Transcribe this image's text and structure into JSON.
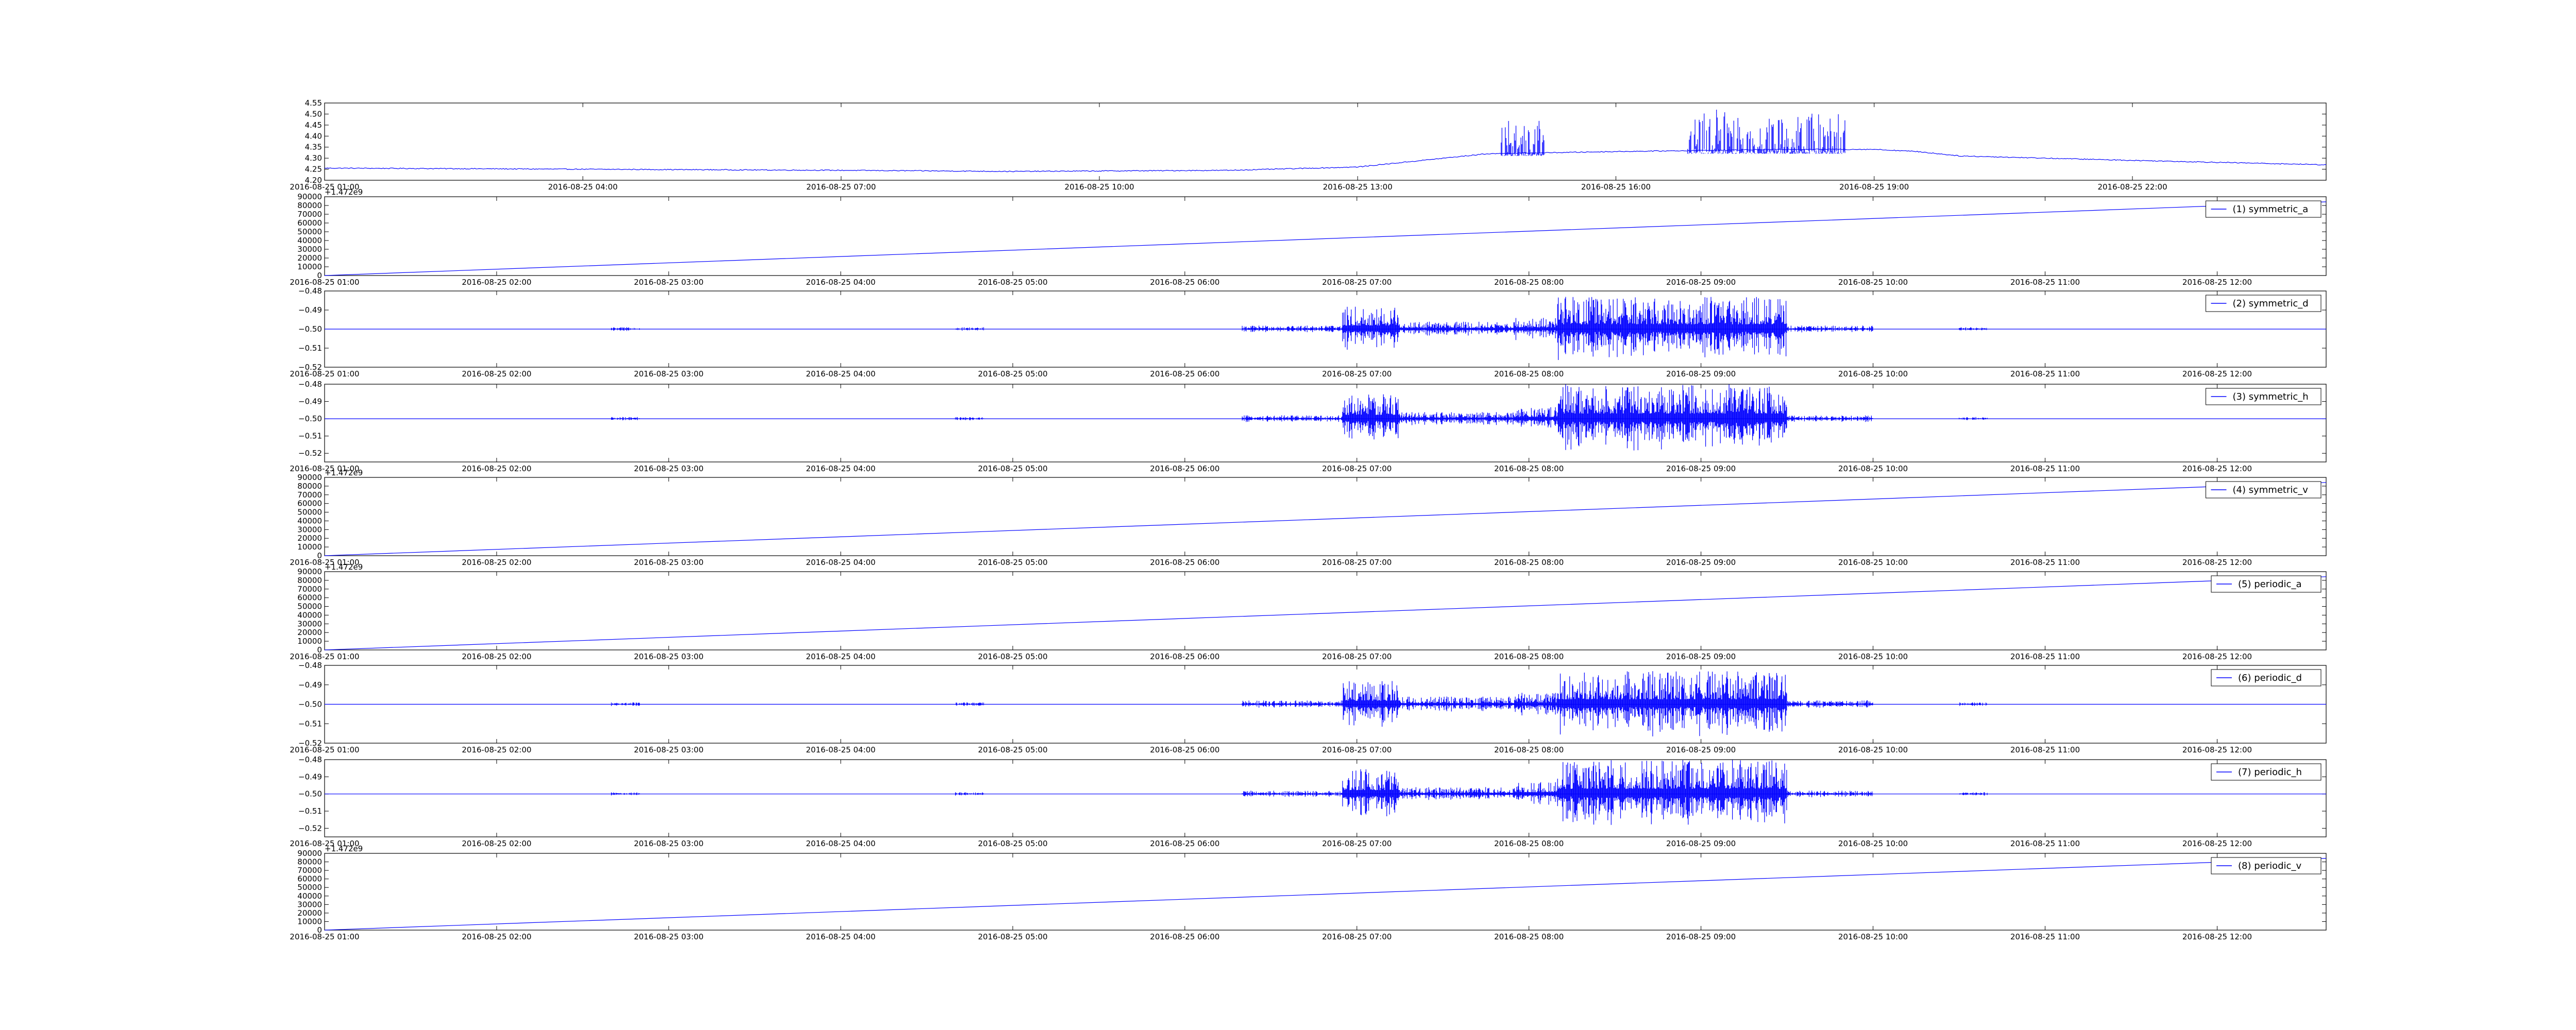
{
  "chart_data": [
    {
      "type": "line",
      "ylim": [
        4.2,
        4.55
      ],
      "y_ticks": [
        "4.20",
        "4.25",
        "4.30",
        "4.35",
        "4.40",
        "4.45",
        "4.50",
        "4.55"
      ],
      "x_ticks": [
        "2016-08-25 01:00",
        "2016-08-25 04:00",
        "2016-08-25 07:00",
        "2016-08-25 10:00",
        "2016-08-25 13:00",
        "2016-08-25 16:00",
        "2016-08-25 19:00",
        "2016-08-25 22:00"
      ],
      "x_range": [
        "2016-08-25 01:00",
        "2016-08-25 24:15"
      ],
      "color": "#0000ff",
      "series": [
        {
          "x": [
            "2016-08-25 01:00",
            "2016-08-25 04:00",
            "2016-08-25 07:00",
            "2016-08-25 09:00",
            "2016-08-25 11:30",
            "2016-08-25 13:00",
            "2016-08-25 14:30",
            "2016-08-25 16:00",
            "2016-08-25 18:00",
            "2016-08-25 19:00",
            "2016-08-25 19:30",
            "2016-08-25 20:00",
            "2016-08-25 22:00",
            "2016-08-25 24:15"
          ],
          "values": [
            4.255,
            4.25,
            4.245,
            4.24,
            4.245,
            4.26,
            4.32,
            4.33,
            4.34,
            4.34,
            4.33,
            4.31,
            4.29,
            4.27
          ],
          "bursts": [
            {
              "from": "2016-08-25 14:40",
              "to": "2016-08-25 15:10",
              "max": 4.47,
              "min": 4.31
            },
            {
              "from": "2016-08-25 16:50",
              "to": "2016-08-25 18:00",
              "max": 4.52,
              "min": 4.32
            },
            {
              "from": "2016-08-25 18:00",
              "to": "2016-08-25 18:40",
              "max": 4.51,
              "min": 4.32
            }
          ]
        }
      ]
    },
    {
      "type": "line",
      "legend": "(1) symmetric_a",
      "legend_loc": "upper right",
      "offset_text": "+1.472e9",
      "ylim": [
        0,
        90000
      ],
      "y_ticks": [
        "0",
        "10000",
        "20000",
        "30000",
        "40000",
        "50000",
        "60000",
        "70000",
        "80000",
        "90000"
      ],
      "x_ticks": [
        "2016-08-25 01:00",
        "2016-08-25 02:00",
        "2016-08-25 03:00",
        "2016-08-25 04:00",
        "2016-08-25 05:00",
        "2016-08-25 06:00",
        "2016-08-25 07:00",
        "2016-08-25 08:00",
        "2016-08-25 09:00",
        "2016-08-25 10:00",
        "2016-08-25 11:00",
        "2016-08-25 12:00"
      ],
      "x_range": [
        "2016-08-25 01:00",
        "2016-08-25 12:38"
      ],
      "color": "#0000ff",
      "series": [
        {
          "x": [
            "2016-08-25 01:00",
            "2016-08-25 12:38"
          ],
          "values": [
            0,
            84200
          ]
        }
      ]
    },
    {
      "type": "line",
      "legend": "(2) symmetric_d",
      "legend_loc": "upper right",
      "ylim": [
        -0.52,
        -0.48
      ],
      "y_ticks": [
        "−0.52",
        "−0.51",
        "−0.50",
        "−0.49",
        "−0.48"
      ],
      "x_ticks": [
        "2016-08-25 01:00",
        "2016-08-25 02:00",
        "2016-08-25 03:00",
        "2016-08-25 04:00",
        "2016-08-25 05:00",
        "2016-08-25 06:00",
        "2016-08-25 07:00",
        "2016-08-25 08:00",
        "2016-08-25 09:00",
        "2016-08-25 10:00",
        "2016-08-25 11:00",
        "2016-08-25 12:00"
      ],
      "x_range": [
        "2016-08-25 01:00",
        "2016-08-25 12:38"
      ],
      "color": "#0000ff",
      "series": [
        {
          "baseline": -0.5,
          "bursts": [
            {
              "from": "2016-08-25 02:40",
              "to": "2016-08-25 02:50",
              "amp": 0.001
            },
            {
              "from": "2016-08-25 04:40",
              "to": "2016-08-25 04:50",
              "amp": 0.001
            },
            {
              "from": "2016-08-25 06:20",
              "to": "2016-08-25 06:55",
              "amp": 0.002
            },
            {
              "from": "2016-08-25 06:55",
              "to": "2016-08-25 07:15",
              "amp": 0.012
            },
            {
              "from": "2016-08-25 07:15",
              "to": "2016-08-25 07:55",
              "amp": 0.004
            },
            {
              "from": "2016-08-25 07:55",
              "to": "2016-08-25 08:10",
              "amp": 0.006
            },
            {
              "from": "2016-08-25 08:10",
              "to": "2016-08-25 09:30",
              "amp": 0.017
            },
            {
              "from": "2016-08-25 09:30",
              "to": "2016-08-25 10:00",
              "amp": 0.002
            },
            {
              "from": "2016-08-25 10:30",
              "to": "2016-08-25 10:40",
              "amp": 0.001
            }
          ]
        }
      ]
    },
    {
      "type": "line",
      "legend": "(3) symmetric_h",
      "legend_loc": "upper right",
      "ylim": [
        -0.525,
        -0.48
      ],
      "y_ticks": [
        "−0.52",
        "−0.51",
        "−0.50",
        "−0.49",
        "−0.48"
      ],
      "x_ticks": [
        "2016-08-25 01:00",
        "2016-08-25 02:00",
        "2016-08-25 03:00",
        "2016-08-25 04:00",
        "2016-08-25 05:00",
        "2016-08-25 06:00",
        "2016-08-25 07:00",
        "2016-08-25 08:00",
        "2016-08-25 09:00",
        "2016-08-25 10:00",
        "2016-08-25 11:00",
        "2016-08-25 12:00"
      ],
      "x_range": [
        "2016-08-25 01:00",
        "2016-08-25 12:38"
      ],
      "color": "#0000ff",
      "series": [
        {
          "baseline": -0.5,
          "bursts": [
            {
              "from": "2016-08-25 02:40",
              "to": "2016-08-25 02:50",
              "amp": 0.001
            },
            {
              "from": "2016-08-25 04:40",
              "to": "2016-08-25 04:50",
              "amp": 0.001
            },
            {
              "from": "2016-08-25 06:20",
              "to": "2016-08-25 06:55",
              "amp": 0.002
            },
            {
              "from": "2016-08-25 06:55",
              "to": "2016-08-25 07:15",
              "amp": 0.015
            },
            {
              "from": "2016-08-25 07:15",
              "to": "2016-08-25 07:55",
              "amp": 0.004
            },
            {
              "from": "2016-08-25 07:55",
              "to": "2016-08-25 08:10",
              "amp": 0.007
            },
            {
              "from": "2016-08-25 08:10",
              "to": "2016-08-25 09:30",
              "amp": 0.02
            },
            {
              "from": "2016-08-25 09:30",
              "to": "2016-08-25 10:00",
              "amp": 0.002
            },
            {
              "from": "2016-08-25 10:30",
              "to": "2016-08-25 10:40",
              "amp": 0.001
            }
          ]
        }
      ]
    },
    {
      "type": "line",
      "legend": "(4) symmetric_v",
      "legend_loc": "upper right",
      "offset_text": "+1.472e9",
      "ylim": [
        0,
        90000
      ],
      "y_ticks": [
        "0",
        "10000",
        "20000",
        "30000",
        "40000",
        "50000",
        "60000",
        "70000",
        "80000",
        "90000"
      ],
      "x_ticks": [
        "2016-08-25 01:00",
        "2016-08-25 02:00",
        "2016-08-25 03:00",
        "2016-08-25 04:00",
        "2016-08-25 05:00",
        "2016-08-25 06:00",
        "2016-08-25 07:00",
        "2016-08-25 08:00",
        "2016-08-25 09:00",
        "2016-08-25 10:00",
        "2016-08-25 11:00",
        "2016-08-25 12:00"
      ],
      "x_range": [
        "2016-08-25 01:00",
        "2016-08-25 12:38"
      ],
      "color": "#0000ff",
      "series": [
        {
          "x": [
            "2016-08-25 01:00",
            "2016-08-25 12:38"
          ],
          "values": [
            0,
            84200
          ]
        }
      ]
    },
    {
      "type": "line",
      "legend": "(5) periodic_a",
      "legend_loc": "upper right",
      "offset_text": "+1.472e9",
      "ylim": [
        0,
        90000
      ],
      "y_ticks": [
        "0",
        "10000",
        "20000",
        "30000",
        "40000",
        "50000",
        "60000",
        "70000",
        "80000",
        "90000"
      ],
      "x_ticks": [
        "2016-08-25 01:00",
        "2016-08-25 02:00",
        "2016-08-25 03:00",
        "2016-08-25 04:00",
        "2016-08-25 05:00",
        "2016-08-25 06:00",
        "2016-08-25 07:00",
        "2016-08-25 08:00",
        "2016-08-25 09:00",
        "2016-08-25 10:00",
        "2016-08-25 11:00",
        "2016-08-25 12:00"
      ],
      "x_range": [
        "2016-08-25 01:00",
        "2016-08-25 12:38"
      ],
      "color": "#0000ff",
      "series": [
        {
          "x": [
            "2016-08-25 01:00",
            "2016-08-25 12:38"
          ],
          "values": [
            0,
            84200
          ]
        }
      ]
    },
    {
      "type": "line",
      "legend": "(6) periodic_d",
      "legend_loc": "upper right",
      "ylim": [
        -0.52,
        -0.48
      ],
      "y_ticks": [
        "−0.52",
        "−0.51",
        "−0.50",
        "−0.49",
        "−0.48"
      ],
      "x_ticks": [
        "2016-08-25 01:00",
        "2016-08-25 02:00",
        "2016-08-25 03:00",
        "2016-08-25 04:00",
        "2016-08-25 05:00",
        "2016-08-25 06:00",
        "2016-08-25 07:00",
        "2016-08-25 08:00",
        "2016-08-25 09:00",
        "2016-08-25 10:00",
        "2016-08-25 11:00",
        "2016-08-25 12:00"
      ],
      "x_range": [
        "2016-08-25 01:00",
        "2016-08-25 12:38"
      ],
      "color": "#0000ff",
      "series": [
        {
          "baseline": -0.5,
          "bursts": [
            {
              "from": "2016-08-25 02:40",
              "to": "2016-08-25 02:50",
              "amp": 0.001
            },
            {
              "from": "2016-08-25 04:40",
              "to": "2016-08-25 04:50",
              "amp": 0.001
            },
            {
              "from": "2016-08-25 06:20",
              "to": "2016-08-25 06:55",
              "amp": 0.002
            },
            {
              "from": "2016-08-25 06:55",
              "to": "2016-08-25 07:15",
              "amp": 0.012
            },
            {
              "from": "2016-08-25 07:15",
              "to": "2016-08-25 07:55",
              "amp": 0.004
            },
            {
              "from": "2016-08-25 07:55",
              "to": "2016-08-25 08:10",
              "amp": 0.006
            },
            {
              "from": "2016-08-25 08:10",
              "to": "2016-08-25 09:30",
              "amp": 0.017
            },
            {
              "from": "2016-08-25 09:30",
              "to": "2016-08-25 10:00",
              "amp": 0.002
            },
            {
              "from": "2016-08-25 10:30",
              "to": "2016-08-25 10:40",
              "amp": 0.001
            }
          ]
        }
      ]
    },
    {
      "type": "line",
      "legend": "(7) periodic_h",
      "legend_loc": "upper right",
      "ylim": [
        -0.525,
        -0.48
      ],
      "y_ticks": [
        "−0.52",
        "−0.51",
        "−0.50",
        "−0.49",
        "−0.48"
      ],
      "x_ticks": [
        "2016-08-25 01:00",
        "2016-08-25 02:00",
        "2016-08-25 03:00",
        "2016-08-25 04:00",
        "2016-08-25 05:00",
        "2016-08-25 06:00",
        "2016-08-25 07:00",
        "2016-08-25 08:00",
        "2016-08-25 09:00",
        "2016-08-25 10:00",
        "2016-08-25 11:00",
        "2016-08-25 12:00"
      ],
      "x_range": [
        "2016-08-25 01:00",
        "2016-08-25 12:38"
      ],
      "color": "#0000ff",
      "series": [
        {
          "baseline": -0.5,
          "bursts": [
            {
              "from": "2016-08-25 02:40",
              "to": "2016-08-25 02:50",
              "amp": 0.001
            },
            {
              "from": "2016-08-25 04:40",
              "to": "2016-08-25 04:50",
              "amp": 0.001
            },
            {
              "from": "2016-08-25 06:20",
              "to": "2016-08-25 06:55",
              "amp": 0.002
            },
            {
              "from": "2016-08-25 06:55",
              "to": "2016-08-25 07:15",
              "amp": 0.015
            },
            {
              "from": "2016-08-25 07:15",
              "to": "2016-08-25 07:55",
              "amp": 0.004
            },
            {
              "from": "2016-08-25 07:55",
              "to": "2016-08-25 08:10",
              "amp": 0.007
            },
            {
              "from": "2016-08-25 08:10",
              "to": "2016-08-25 09:30",
              "amp": 0.02
            },
            {
              "from": "2016-08-25 09:30",
              "to": "2016-08-25 10:00",
              "amp": 0.002
            },
            {
              "from": "2016-08-25 10:30",
              "to": "2016-08-25 10:40",
              "amp": 0.001
            }
          ]
        }
      ]
    },
    {
      "type": "line",
      "legend": "(8) periodic_v",
      "legend_loc": "upper right",
      "offset_text": "+1.472e9",
      "ylim": [
        0,
        90000
      ],
      "y_ticks": [
        "0",
        "10000",
        "20000",
        "30000",
        "40000",
        "50000",
        "60000",
        "70000",
        "80000",
        "90000"
      ],
      "x_ticks": [
        "2016-08-25 01:00",
        "2016-08-25 02:00",
        "2016-08-25 03:00",
        "2016-08-25 04:00",
        "2016-08-25 05:00",
        "2016-08-25 06:00",
        "2016-08-25 07:00",
        "2016-08-25 08:00",
        "2016-08-25 09:00",
        "2016-08-25 10:00",
        "2016-08-25 11:00",
        "2016-08-25 12:00"
      ],
      "x_range": [
        "2016-08-25 01:00",
        "2016-08-25 12:38"
      ],
      "color": "#0000ff",
      "series": [
        {
          "x": [
            "2016-08-25 01:00",
            "2016-08-25 12:38"
          ],
          "values": [
            0,
            84200
          ]
        }
      ]
    }
  ]
}
